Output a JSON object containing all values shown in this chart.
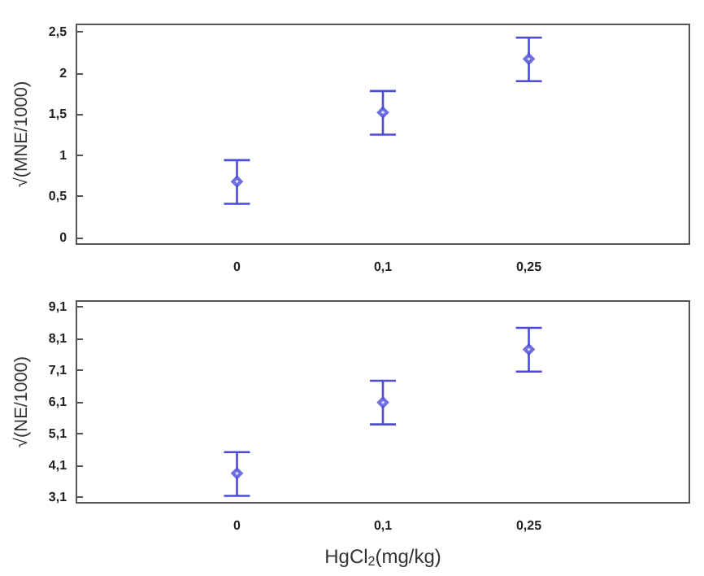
{
  "chart_data": [
    {
      "type": "scatter",
      "ylabel": "√(MNE/1000)",
      "categories": [
        "0",
        "0,1",
        "0,25"
      ],
      "marker": "diamond",
      "grid": false,
      "ylim": [
        -0.08,
        2.59
      ],
      "yticks": [
        0,
        {
          "value": 0.5,
          "label": "0,5"
        },
        1,
        {
          "value": 1.5,
          "label": "1,5"
        },
        2,
        {
          "value": 2.5,
          "label": "2,5"
        }
      ],
      "series": [
        {
          "color": "#4b4bd8",
          "values": [
            0.68,
            1.52,
            2.17
          ],
          "errors": [
            [
              0.41,
              0.94
            ],
            [
              1.25,
              1.78
            ],
            [
              1.9,
              2.43
            ]
          ]
        }
      ]
    },
    {
      "type": "scatter",
      "ylabel": "√(NE/1000)",
      "xlabel": "HgCl$_{2}$(mg/kg)",
      "categories": [
        "0",
        "0,1",
        "0,25"
      ],
      "marker": "diamond",
      "grid": false,
      "ylim": [
        2.91,
        9.29
      ],
      "yticks": [
        {
          "value": 3.1,
          "label": "3,1"
        },
        {
          "value": 4.1,
          "label": "4,1"
        },
        {
          "value": 5.1,
          "label": "5,1"
        },
        {
          "value": 6.1,
          "label": "6,1"
        },
        {
          "value": 7.1,
          "label": "7,1"
        },
        {
          "value": 8.1,
          "label": "8,1"
        },
        {
          "value": 9.1,
          "label": "9,1"
        }
      ],
      "series": [
        {
          "color": "#4b4bd8",
          "values": [
            3.84,
            6.08,
            7.76
          ],
          "errors": [
            [
              3.13,
              4.51
            ],
            [
              5.39,
              6.77
            ],
            [
              7.06,
              8.44
            ]
          ]
        }
      ]
    }
  ]
}
